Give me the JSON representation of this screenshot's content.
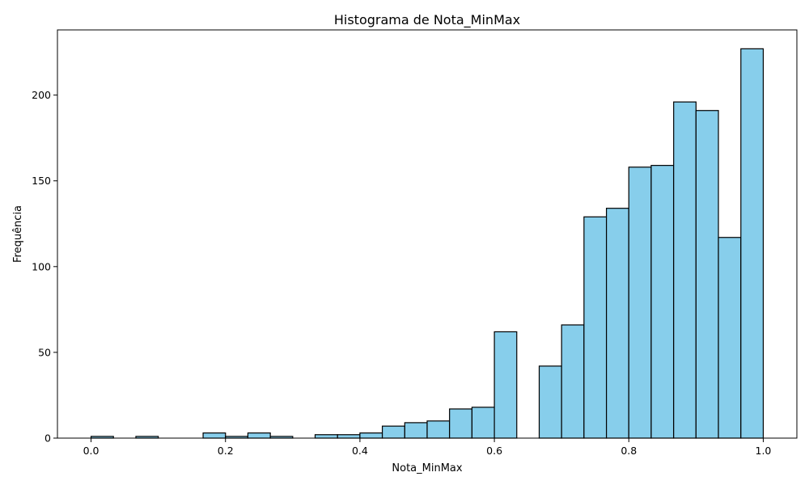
{
  "chart_data": {
    "type": "bar",
    "title": "Histograma de Nota_MinMax",
    "xlabel": "Nota_MinMax",
    "ylabel": "Frequência",
    "xlim": [
      -0.05,
      1.05
    ],
    "ylim": [
      0,
      238
    ],
    "x_ticks": [
      {
        "value": 0.0,
        "label": "0.0"
      },
      {
        "value": 0.2,
        "label": "0.2"
      },
      {
        "value": 0.4,
        "label": "0.4"
      },
      {
        "value": 0.6,
        "label": "0.6"
      },
      {
        "value": 0.8,
        "label": "0.8"
      },
      {
        "value": 1.0,
        "label": "1.0"
      }
    ],
    "y_ticks": [
      {
        "value": 0,
        "label": "0"
      },
      {
        "value": 50,
        "label": "50"
      },
      {
        "value": 100,
        "label": "100"
      },
      {
        "value": 150,
        "label": "150"
      },
      {
        "value": 200,
        "label": "200"
      }
    ],
    "bins": {
      "edges": [
        0.0,
        0.0333,
        0.0667,
        0.1,
        0.1333,
        0.1667,
        0.2,
        0.2333,
        0.2667,
        0.3,
        0.3333,
        0.3667,
        0.4,
        0.4333,
        0.4667,
        0.5,
        0.5333,
        0.5667,
        0.6,
        0.6333,
        0.6667,
        0.7,
        0.7333,
        0.7667,
        0.8,
        0.8333,
        0.8667,
        0.9,
        0.9333,
        0.9667,
        1.0
      ],
      "values": [
        1,
        0,
        1,
        0,
        0,
        3,
        1,
        3,
        1,
        0,
        2,
        2,
        3,
        7,
        9,
        10,
        17,
        18,
        62,
        0,
        42,
        66,
        129,
        134,
        158,
        159,
        196,
        191,
        117,
        227
      ]
    },
    "bar_color": "#87ceeb",
    "edge_color": "#000000",
    "grid": false,
    "legend": "none"
  }
}
